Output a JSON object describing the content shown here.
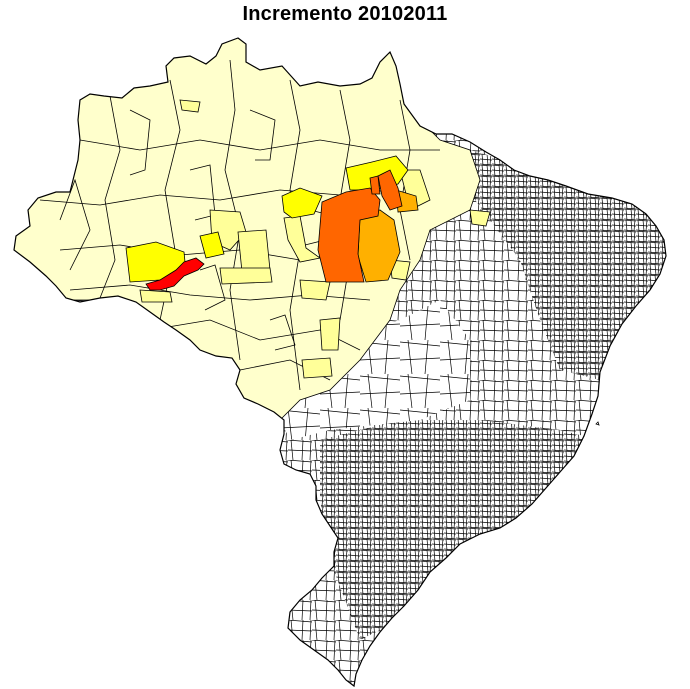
{
  "map": {
    "title": "Incremento 20102011",
    "colors": {
      "background": "#ffffff",
      "outline": "#000000",
      "legal_amazon_low": "#ffffcc",
      "low": "#ffff99",
      "medium_low": "#ffff00",
      "medium": "#ffcc00",
      "medium_high": "#ff9900",
      "high": "#ff6600",
      "highest": "#ff0000"
    }
  }
}
